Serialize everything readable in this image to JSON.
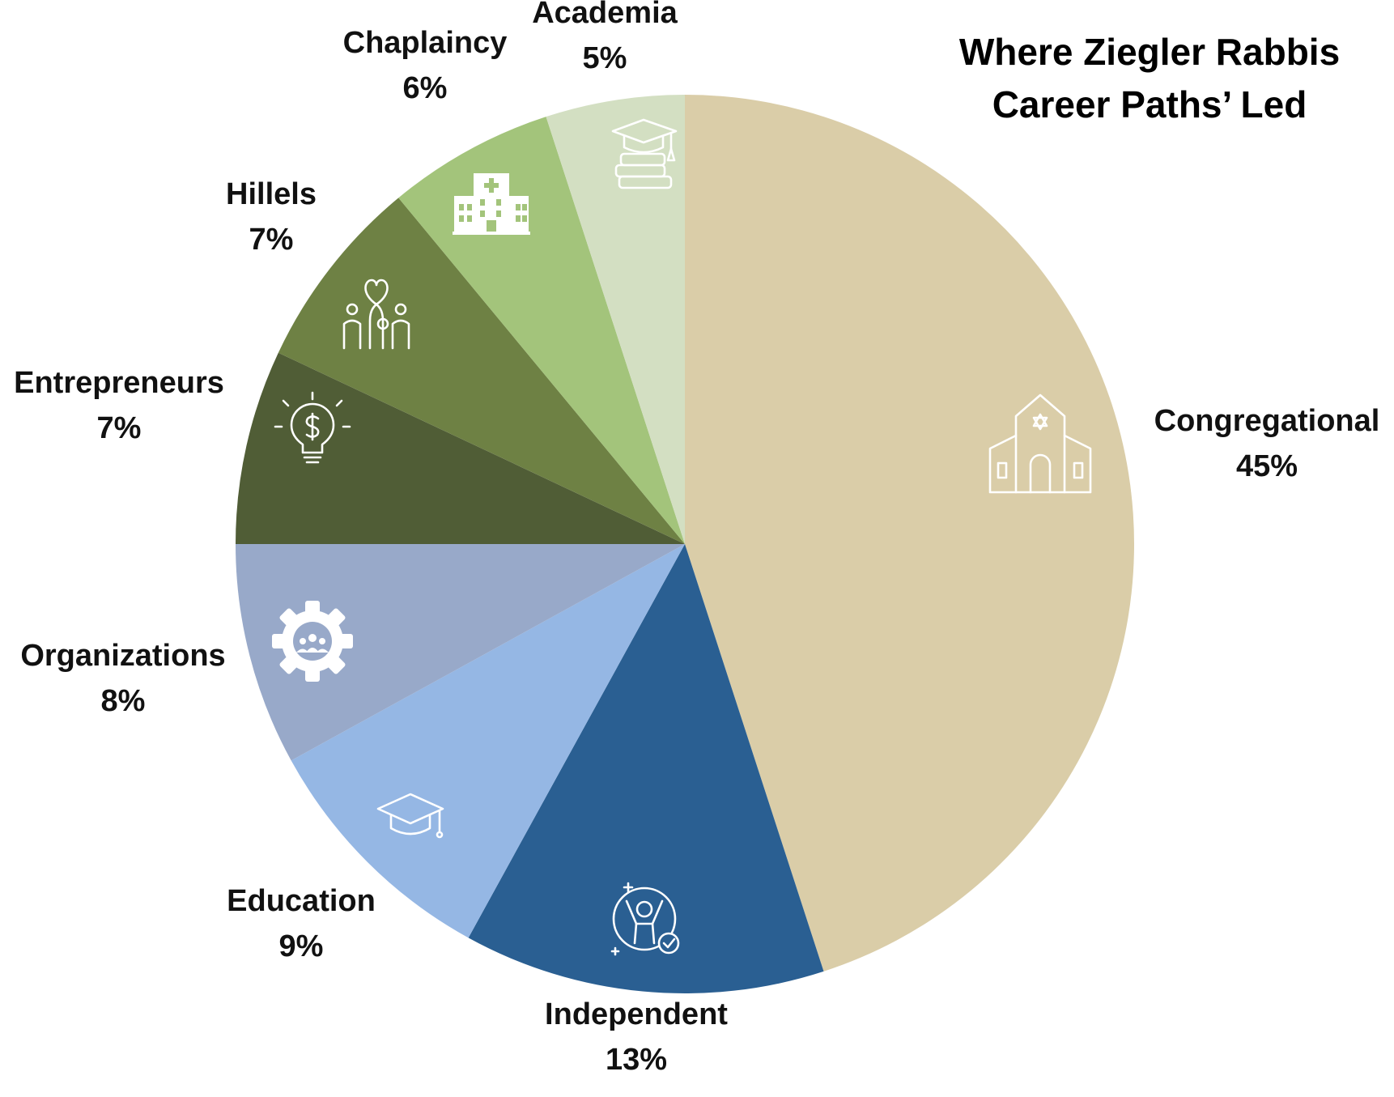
{
  "chart_data": {
    "type": "pie",
    "title_lines": [
      "Where Ziegler Rabbis",
      "Career Paths’ Led"
    ],
    "start_angle_deg": 0,
    "direction": "clockwise",
    "slices": [
      {
        "name": "Congregational",
        "label": "45%",
        "value": 45,
        "color": "#DACDA8",
        "icon": "synagogue-icon"
      },
      {
        "name": "Independent",
        "label": "13%",
        "value": 13,
        "color": "#2A5F92",
        "icon": "person-cheering-check-icon"
      },
      {
        "name": "Education",
        "label": "9%",
        "value": 9,
        "color": "#95B7E4",
        "icon": "graduation-cap-icon"
      },
      {
        "name": "Organizations",
        "label": "8%",
        "value": 8,
        "color": "#98A9C9",
        "icon": "gear-people-icon"
      },
      {
        "name": "Entrepreneurs",
        "label": "7%",
        "value": 7,
        "color": "#505D36",
        "icon": "lightbulb-dollar-icon"
      },
      {
        "name": "Hillels",
        "label": "7%",
        "value": 7,
        "color": "#6E8144",
        "icon": "heart-hands-icon"
      },
      {
        "name": "Chaplaincy",
        "label": "6%",
        "value": 6,
        "color": "#A3C47B",
        "icon": "hospital-icon"
      },
      {
        "name": "Academia",
        "label": "5%",
        "value": 5,
        "color": "#D3DFC2",
        "icon": "books-cap-icon"
      }
    ]
  }
}
